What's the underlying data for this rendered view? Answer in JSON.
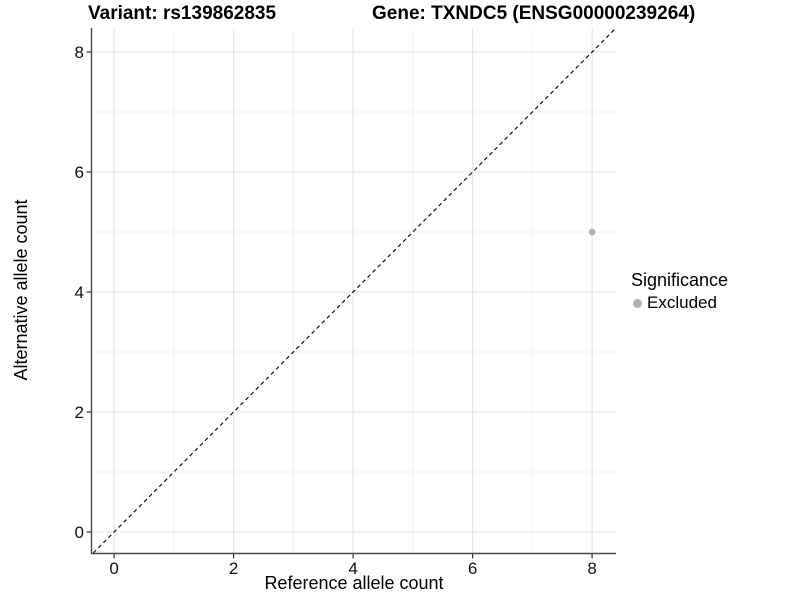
{
  "chart_data": {
    "type": "scatter",
    "title_left": "Variant: rs139862835",
    "title_right": "Gene: TXNDC5 (ENSG00000239264)",
    "xlabel": "Reference allele count",
    "ylabel": "Alternative allele count",
    "xlim": [
      -0.37,
      8.4
    ],
    "ylim": [
      -0.35,
      8.4
    ],
    "x_ticks": [
      0,
      2,
      4,
      6,
      8
    ],
    "y_ticks": [
      0,
      2,
      4,
      6,
      8
    ],
    "x_minor_gridlines": [
      1,
      3,
      5,
      7
    ],
    "y_minor_gridlines": [
      1,
      3,
      5,
      7
    ],
    "grid": true,
    "identity_line": {
      "equation": "y = x",
      "style": "dashed",
      "color": "#000000"
    },
    "series": [
      {
        "name": "Excluded",
        "color": "#b1b1b1",
        "points": [
          {
            "x": 8,
            "y": 5
          }
        ]
      }
    ],
    "legend": {
      "title": "Significance",
      "position": "right",
      "items": [
        {
          "label": "Excluded",
          "color": "#b1b1b1"
        }
      ]
    },
    "colors": {
      "background": "#ffffff",
      "grid_major": "#e4e4e4",
      "grid_minor": "#f1f1f1",
      "axis_line": "#474747",
      "text": "#000000"
    }
  }
}
